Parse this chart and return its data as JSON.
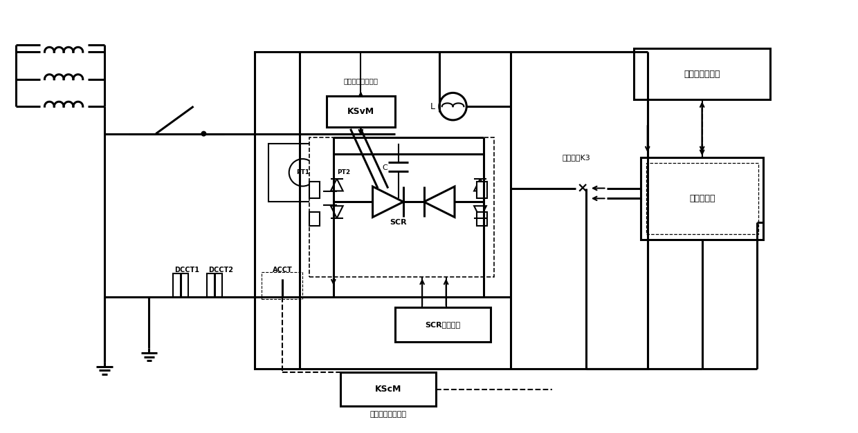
{
  "bg_color": "#ffffff",
  "labels": {
    "voltage_monitor": "瞬时电压监测单元",
    "KSvM": "KSvM",
    "L_label": "L",
    "PT1": "PT1",
    "PT2": "PT2",
    "C_label": "C",
    "DCCT1": "DCCT1",
    "DCCT2": "DCCT2",
    "ACCT": "ACCT",
    "SCR": "SCR",
    "SCR_trigger": "SCR触发单元",
    "KScM": "KScM",
    "current_monitor": "瞬时电流监测单元",
    "K3_label": "隔直开关K3",
    "digital_ctrl": "数字控制器",
    "remote_pc": "远程监控计算机"
  }
}
